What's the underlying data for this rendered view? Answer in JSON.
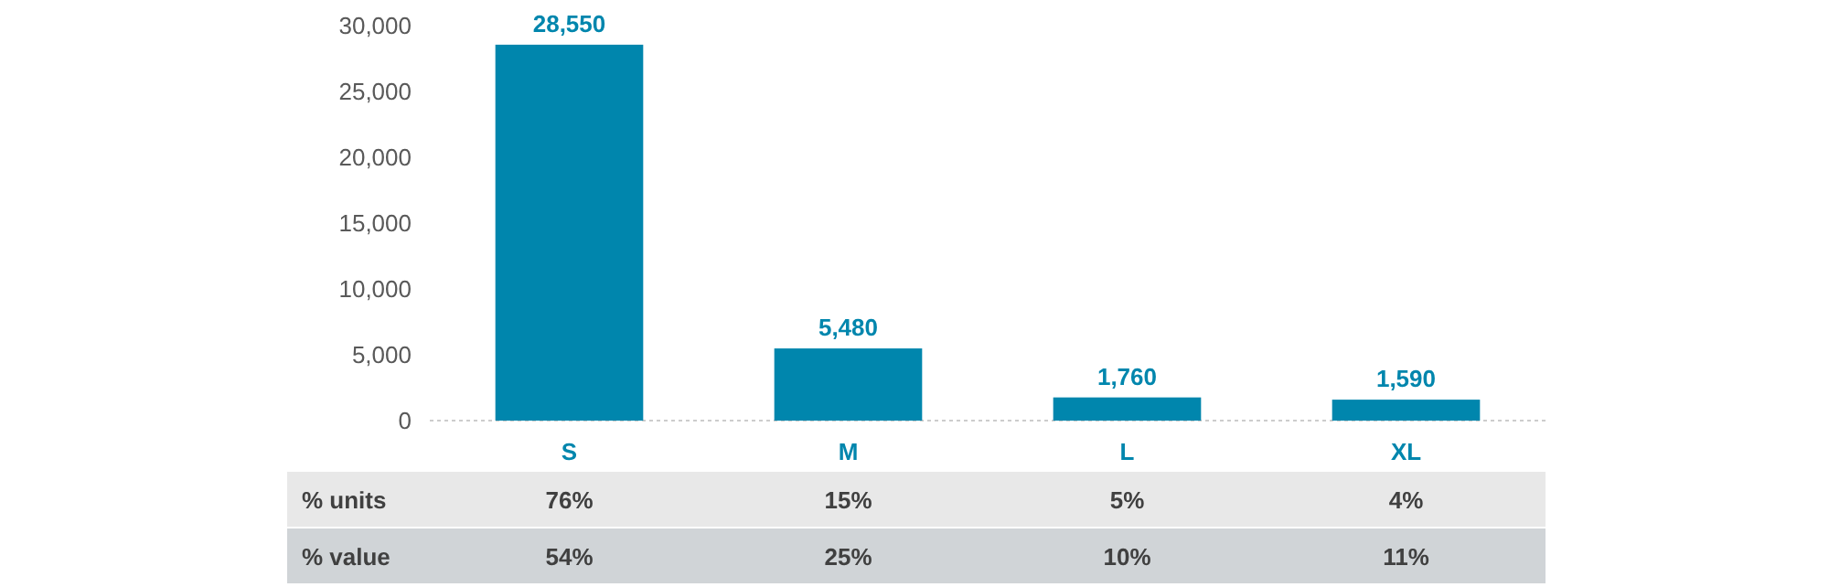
{
  "chart_data": {
    "type": "bar",
    "categories": [
      "S",
      "M",
      "L",
      "XL"
    ],
    "values": [
      28550,
      5480,
      1760,
      1590
    ],
    "color": "#0086ad",
    "ylim": [
      0,
      30000
    ],
    "yticks": [
      {
        "value": 0,
        "label": "0"
      },
      {
        "value": 5000,
        "label": "5,000"
      },
      {
        "value": 10000,
        "label": "10,000"
      },
      {
        "value": 15000,
        "label": "15,000"
      },
      {
        "value": 20000,
        "label": "20,000"
      },
      {
        "value": 25000,
        "label": "25,000"
      },
      {
        "value": 30000,
        "label": "30,000"
      }
    ],
    "value_labels": [
      "28,550",
      "5,480",
      "1,760",
      "1,590"
    ],
    "grid": false,
    "annotations": [
      "% units",
      "76%",
      "15%",
      "5%",
      "4%",
      "% value",
      "54%",
      "25%",
      "10%",
      "11%"
    ]
  }
}
